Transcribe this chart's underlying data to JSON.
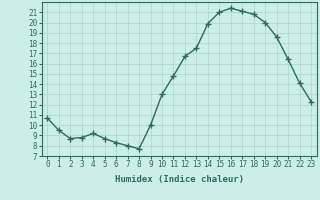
{
  "x": [
    0,
    1,
    2,
    3,
    4,
    5,
    6,
    7,
    8,
    9,
    10,
    11,
    12,
    13,
    14,
    15,
    16,
    17,
    18,
    19,
    20,
    21,
    22,
    23
  ],
  "y": [
    10.7,
    9.5,
    8.7,
    8.8,
    9.2,
    8.7,
    8.3,
    8.0,
    7.7,
    10.0,
    13.0,
    14.8,
    16.7,
    17.5,
    19.9,
    21.0,
    21.4,
    21.1,
    20.8,
    20.0,
    18.6,
    16.4,
    14.1,
    12.3
  ],
  "xlabel": "Humidex (Indice chaleur)",
  "bg_color": "#cceee8",
  "line_color": "#2d6b5e",
  "grid_color": "#aad4cc",
  "xlim": [
    -0.5,
    23.5
  ],
  "ylim": [
    7,
    22
  ],
  "yticks": [
    7,
    8,
    9,
    10,
    11,
    12,
    13,
    14,
    15,
    16,
    17,
    18,
    19,
    20,
    21
  ],
  "xticks": [
    0,
    1,
    2,
    3,
    4,
    5,
    6,
    7,
    8,
    9,
    10,
    11,
    12,
    13,
    14,
    15,
    16,
    17,
    18,
    19,
    20,
    21,
    22,
    23
  ],
  "xtick_labels": [
    "0",
    "1",
    "2",
    "3",
    "4",
    "5",
    "6",
    "7",
    "8",
    "9",
    "10",
    "11",
    "12",
    "13",
    "14",
    "15",
    "16",
    "17",
    "18",
    "19",
    "20",
    "21",
    "22",
    "23"
  ],
  "marker": "+",
  "marker_size": 4,
  "line_width": 1.0,
  "tick_fontsize": 5.5,
  "xlabel_fontsize": 6.5
}
